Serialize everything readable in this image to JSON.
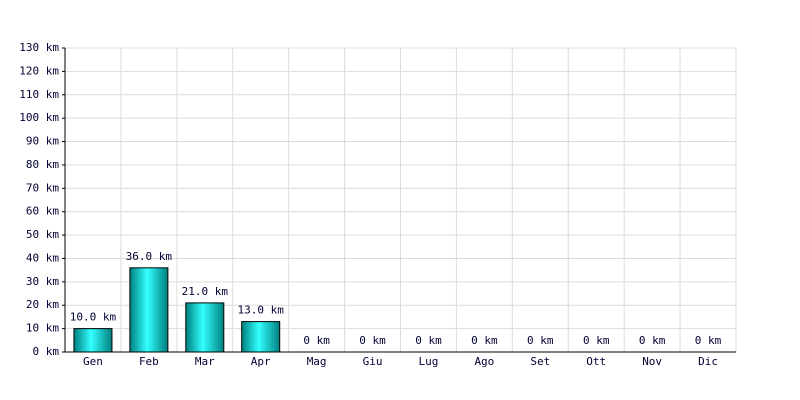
{
  "chart_data": {
    "type": "bar",
    "categories": [
      "Gen",
      "Feb",
      "Mar",
      "Apr",
      "Mag",
      "Giu",
      "Lug",
      "Ago",
      "Set",
      "Ott",
      "Nov",
      "Dic"
    ],
    "values": [
      10,
      36,
      21,
      13,
      0,
      0,
      0,
      0,
      0,
      0,
      0,
      0
    ],
    "value_labels": [
      "10.0 km",
      "36.0 km",
      "21.0 km",
      "13.0 km",
      "0 km",
      "0 km",
      "0 km",
      "0 km",
      "0 km",
      "0 km",
      "0 km",
      "0 km"
    ],
    "color": "#00cccc",
    "ylim": [
      0,
      130
    ],
    "yticks": [
      {
        "value": 0,
        "label": "0 km"
      },
      {
        "value": 10,
        "label": "10 km"
      },
      {
        "value": 20,
        "label": "20 km"
      },
      {
        "value": 30,
        "label": "30 km"
      },
      {
        "value": 40,
        "label": "40 km"
      },
      {
        "value": 50,
        "label": "50 km"
      },
      {
        "value": 60,
        "label": "60 km"
      },
      {
        "value": 70,
        "label": "70 km"
      },
      {
        "value": 80,
        "label": "80 km"
      },
      {
        "value": 90,
        "label": "90 km"
      },
      {
        "value": 100,
        "label": "100 km"
      },
      {
        "value": 110,
        "label": "110 km"
      },
      {
        "value": 120,
        "label": "120 km"
      },
      {
        "value": 130,
        "label": "130 km"
      }
    ],
    "grid": true
  }
}
